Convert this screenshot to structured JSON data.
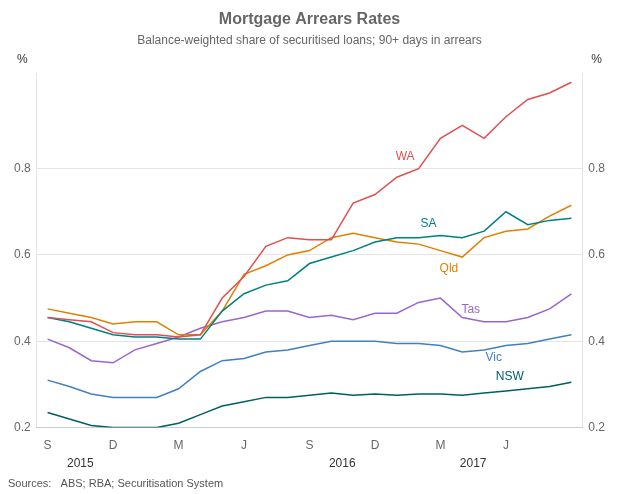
{
  "chart_data": {
    "type": "line",
    "title": "Mortgage Arrears Rates",
    "subtitle": "Balance-weighted share of securitised loans; 90+ days in arrears",
    "ylabel": "%",
    "y2label": "%",
    "source": "Sources:   ABS; RBA; Securitisation System",
    "categories": [
      "S",
      null,
      null,
      "D",
      null,
      null,
      "M",
      null,
      null,
      "J",
      null,
      null,
      "S",
      null,
      null,
      "D",
      null,
      null,
      "M",
      null,
      null,
      "J",
      null,
      null,
      null
    ],
    "annotations": [
      {
        "text": "2015",
        "x": 1.5
      },
      {
        "text": "2016",
        "x": 13.5
      },
      {
        "text": "2017",
        "x": 19.5
      }
    ],
    "series": [
      {
        "name": "WA",
        "color": "#e05050",
        "values": [
          0.455,
          0.45,
          0.445,
          0.42,
          0.415,
          0.415,
          0.41,
          0.415,
          0.5,
          0.55,
          0.62,
          0.64,
          0.635,
          0.635,
          0.72,
          0.74,
          0.78,
          0.8,
          0.87,
          0.9,
          0.87,
          0.92,
          0.96,
          0.975,
          1.0
        ]
      },
      {
        "name": "SA",
        "color": "#008080",
        "values": [
          0.455,
          0.445,
          0.43,
          0.415,
          0.41,
          0.41,
          0.405,
          0.405,
          0.47,
          0.51,
          0.53,
          0.54,
          0.58,
          0.595,
          0.61,
          0.63,
          0.64,
          0.64,
          0.645,
          0.64,
          0.655,
          0.7,
          0.67,
          0.68,
          0.685
        ]
      },
      {
        "name": "Qld",
        "color": "#e08000",
        "values": [
          0.475,
          0.465,
          0.455,
          0.44,
          0.445,
          0.445,
          0.415,
          0.415,
          0.47,
          0.555,
          0.575,
          0.6,
          0.61,
          0.64,
          0.65,
          0.64,
          0.63,
          0.625,
          0.61,
          0.595,
          0.64,
          0.655,
          0.66,
          0.69,
          0.715
        ]
      },
      {
        "name": "Tas",
        "color": "#9966cc",
        "values": [
          0.405,
          0.385,
          0.355,
          0.35,
          0.38,
          0.395,
          0.41,
          0.43,
          0.445,
          0.455,
          0.47,
          0.47,
          0.455,
          0.46,
          0.45,
          0.465,
          0.465,
          0.49,
          0.5,
          0.455,
          0.445,
          0.445,
          0.455,
          0.475,
          0.51
        ]
      },
      {
        "name": "Vic",
        "color": "#4080c0",
        "values": [
          0.31,
          0.295,
          0.278,
          0.27,
          0.27,
          0.27,
          0.29,
          0.33,
          0.355,
          0.36,
          0.375,
          0.38,
          0.39,
          0.4,
          0.4,
          0.4,
          0.395,
          0.395,
          0.39,
          0.375,
          0.38,
          0.39,
          0.395,
          0.405,
          0.415
        ]
      },
      {
        "name": "NSW",
        "color": "#006060",
        "values": [
          0.235,
          0.22,
          0.205,
          0.2,
          0.2,
          0.2,
          0.21,
          0.23,
          0.25,
          0.26,
          0.27,
          0.27,
          0.275,
          0.28,
          0.275,
          0.278,
          0.275,
          0.278,
          0.278,
          0.275,
          0.28,
          0.285,
          0.29,
          0.295,
          0.305
        ]
      }
    ],
    "ylim": [
      0.2,
      1.02
    ],
    "yticks": [
      0.2,
      0.4,
      0.6,
      0.8
    ],
    "y2lim": [
      0.2,
      1.02
    ],
    "y2ticks": [
      0.2,
      0.4,
      0.6,
      0.8
    ],
    "grid": "y"
  }
}
